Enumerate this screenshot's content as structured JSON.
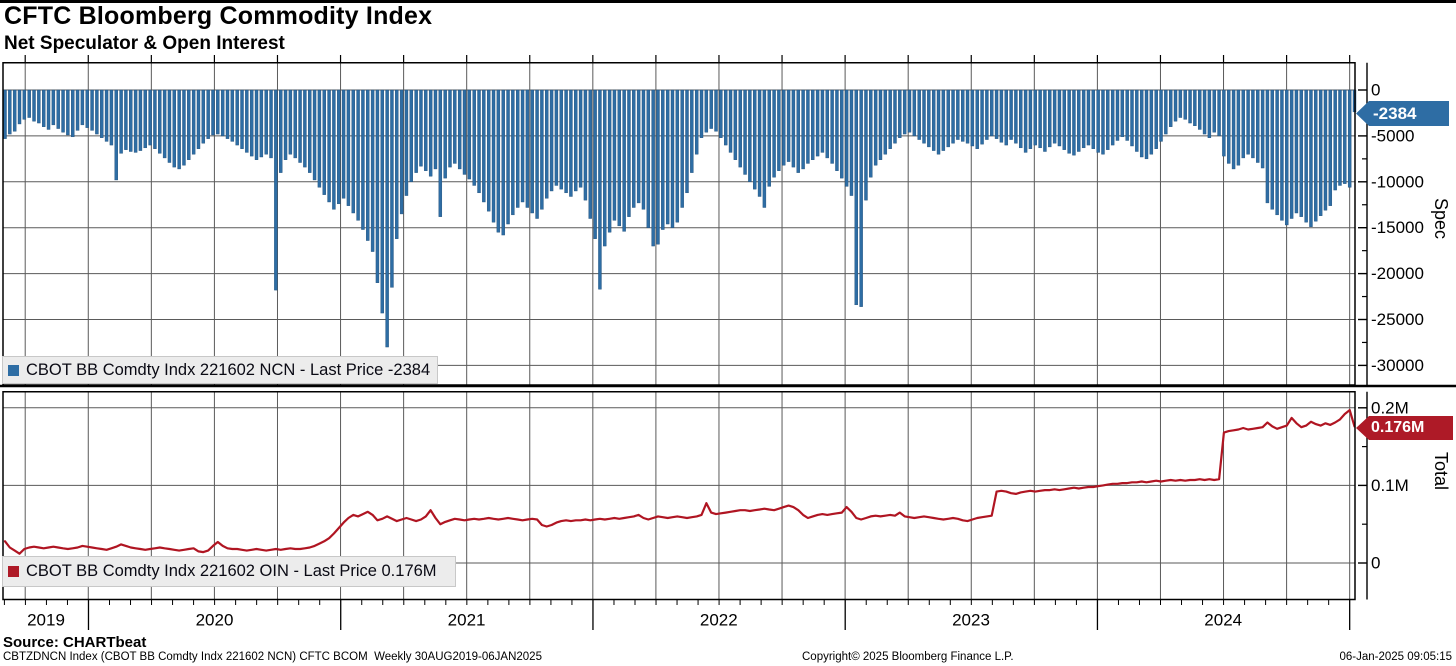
{
  "header": {
    "title": "CFTC Bloomberg Commodity Index",
    "subtitle": "Net Speculator & Open Interest"
  },
  "colors": {
    "bar_blue": "#2e6da4",
    "bar_edge": "#1d4d78",
    "line_red": "#b01522",
    "badge_blue": "#2e6da4",
    "badge_red": "#ae1a27",
    "grid": "#5a5a5a",
    "frame": "#000000",
    "legend_bg": "#ececec"
  },
  "spec_panel": {
    "axis_label": "Spec",
    "badge": "-2384",
    "legend": "CBOT BB Comdty Indx 221602 NCN - Last Price -2384",
    "ticks": [
      "0",
      "-5000",
      "-10000",
      "-15000",
      "-20000",
      "-25000",
      "-30000"
    ]
  },
  "total_panel": {
    "axis_label": "Total",
    "badge": "0.176M",
    "legend": "CBOT BB Comdty Indx 221602 OIN - Last Price 0.176M",
    "ticks": [
      "0.2M",
      "0.1M",
      "0"
    ]
  },
  "x_axis": {
    "years": [
      "2019",
      "2020",
      "2021",
      "2022",
      "2023",
      "2024"
    ]
  },
  "footer": {
    "source": "Source: CHARTbeat",
    "note_left": "CBTZDNCN Index (CBOT BB Comdty Indx 221602 NCN) CFTC BCOM  Weekly 30AUG2019-06JAN2025",
    "note_center": "Copyright© 2025 Bloomberg Finance L.P.",
    "note_right": "06-Jan-2025 09:05:15"
  },
  "chart_data": [
    {
      "type": "bar",
      "name": "CBOT BB Comdty Indx 221602 NCN",
      "title": "Net Speculator",
      "ylabel": "Spec",
      "frequency": "Weekly",
      "x_range": "30AUG2019-06JAN2025",
      "ylim": [
        -30000,
        0
      ],
      "last_price": -2384,
      "values": [
        -5300,
        -4800,
        -4500,
        -3700,
        -3200,
        -3000,
        -3400,
        -3600,
        -4000,
        -4300,
        -3800,
        -4200,
        -4600,
        -4900,
        -5100,
        -4400,
        -3800,
        -4100,
        -4400,
        -4800,
        -5200,
        -5600,
        -6000,
        -9800,
        -6900,
        -6500,
        -6700,
        -6800,
        -6600,
        -6300,
        -6000,
        -6400,
        -6900,
        -7400,
        -7900,
        -8400,
        -8600,
        -8200,
        -7600,
        -7000,
        -6400,
        -5800,
        -5300,
        -4900,
        -4800,
        -5000,
        -5300,
        -5600,
        -6000,
        -6400,
        -6800,
        -7200,
        -7600,
        -7300,
        -7000,
        -7400,
        -21800,
        -9000,
        -7600,
        -7000,
        -7400,
        -7900,
        -8400,
        -9000,
        -9800,
        -10600,
        -11400,
        -12200,
        -13000,
        -12400,
        -11800,
        -12600,
        -13400,
        -14200,
        -15200,
        -16400,
        -17600,
        -21000,
        -24300,
        -28000,
        -21500,
        -16200,
        -13500,
        -11500,
        -10000,
        -9000,
        -8300,
        -8800,
        -9400,
        -8600,
        -13800,
        -9600,
        -8400,
        -8000,
        -8600,
        -9200,
        -9700,
        -10400,
        -11200,
        -12200,
        -13200,
        -14400,
        -15500,
        -15800,
        -14600,
        -13600,
        -12800,
        -12200,
        -12800,
        -13400,
        -14000,
        -13000,
        -11800,
        -11000,
        -10400,
        -10800,
        -11200,
        -11600,
        -11000,
        -10600,
        -12000,
        -14000,
        -16200,
        -21700,
        -17000,
        -15500,
        -14200,
        -14800,
        -15400,
        -13800,
        -12800,
        -12300,
        -13000,
        -15000,
        -17000,
        -16800,
        -15200,
        -14600,
        -15000,
        -14400,
        -12800,
        -11200,
        -9000,
        -7000,
        -5200,
        -4600,
        -4200,
        -4500,
        -5200,
        -6000,
        -6800,
        -7600,
        -8400,
        -9200,
        -10000,
        -10800,
        -11600,
        -12800,
        -10500,
        -9500,
        -8800,
        -8200,
        -7800,
        -8400,
        -9000,
        -8600,
        -8000,
        -7600,
        -7200,
        -6800,
        -7400,
        -8000,
        -8800,
        -9600,
        -10500,
        -11500,
        -23400,
        -23600,
        -12000,
        -9500,
        -8200,
        -7600,
        -7000,
        -6400,
        -5800,
        -5200,
        -4800,
        -4600,
        -5000,
        -5400,
        -5800,
        -6200,
        -6600,
        -7000,
        -6600,
        -6200,
        -5800,
        -5400,
        -5600,
        -5800,
        -6100,
        -6400,
        -5900,
        -5400,
        -5000,
        -5300,
        -5700,
        -6000,
        -5400,
        -5800,
        -6300,
        -6800,
        -6400,
        -6000,
        -6300,
        -6700,
        -6200,
        -5800,
        -6100,
        -6500,
        -6900,
        -7100,
        -6700,
        -6300,
        -6000,
        -6400,
        -6800,
        -7000,
        -6500,
        -6000,
        -5500,
        -5100,
        -5500,
        -6100,
        -6700,
        -7300,
        -7500,
        -7000,
        -6400,
        -5600,
        -4800,
        -4000,
        -3400,
        -3000,
        -3200,
        -3600,
        -3900,
        -4300,
        -4800,
        -5200,
        -4600,
        -5000,
        -7200,
        -8000,
        -8600,
        -8200,
        -7400,
        -7000,
        -7400,
        -7900,
        -8500,
        -12300,
        -13000,
        -13600,
        -14200,
        -14700,
        -14000,
        -13400,
        -13800,
        -14400,
        -14900,
        -14300,
        -13700,
        -13100,
        -12600,
        -10900,
        -10400,
        -10200,
        -10600,
        -2384
      ]
    },
    {
      "type": "line",
      "name": "CBOT BB Comdty Indx 221602 OIN",
      "title": "Open Interest",
      "ylabel": "Total",
      "unit": "M",
      "frequency": "Weekly",
      "x_range": "30AUG2019-06JAN2025",
      "ylim": [
        0,
        0.2
      ],
      "last_price": "0.176M",
      "values": [
        0.028,
        0.02,
        0.016,
        0.012,
        0.018,
        0.02,
        0.021,
        0.02,
        0.019,
        0.02,
        0.021,
        0.02,
        0.019,
        0.018,
        0.019,
        0.02,
        0.022,
        0.021,
        0.02,
        0.019,
        0.018,
        0.017,
        0.019,
        0.021,
        0.024,
        0.022,
        0.02,
        0.019,
        0.018,
        0.017,
        0.018,
        0.019,
        0.02,
        0.019,
        0.018,
        0.017,
        0.016,
        0.017,
        0.018,
        0.019,
        0.015,
        0.014,
        0.016,
        0.022,
        0.027,
        0.022,
        0.019,
        0.018,
        0.018,
        0.017,
        0.016,
        0.017,
        0.018,
        0.017,
        0.016,
        0.017,
        0.018,
        0.017,
        0.018,
        0.019,
        0.018,
        0.018,
        0.019,
        0.02,
        0.022,
        0.025,
        0.028,
        0.032,
        0.038,
        0.045,
        0.052,
        0.058,
        0.062,
        0.06,
        0.063,
        0.066,
        0.062,
        0.055,
        0.057,
        0.06,
        0.057,
        0.054,
        0.056,
        0.058,
        0.056,
        0.054,
        0.056,
        0.06,
        0.068,
        0.058,
        0.05,
        0.053,
        0.055,
        0.057,
        0.056,
        0.055,
        0.056,
        0.057,
        0.056,
        0.057,
        0.058,
        0.057,
        0.056,
        0.057,
        0.058,
        0.057,
        0.056,
        0.055,
        0.056,
        0.057,
        0.056,
        0.049,
        0.047,
        0.049,
        0.052,
        0.054,
        0.055,
        0.054,
        0.055,
        0.055,
        0.056,
        0.055,
        0.056,
        0.057,
        0.056,
        0.057,
        0.058,
        0.057,
        0.058,
        0.059,
        0.06,
        0.062,
        0.058,
        0.056,
        0.058,
        0.06,
        0.059,
        0.058,
        0.059,
        0.06,
        0.059,
        0.058,
        0.059,
        0.06,
        0.062,
        0.077,
        0.065,
        0.063,
        0.064,
        0.065,
        0.066,
        0.067,
        0.068,
        0.068,
        0.067,
        0.068,
        0.069,
        0.07,
        0.069,
        0.068,
        0.07,
        0.072,
        0.074,
        0.072,
        0.068,
        0.062,
        0.058,
        0.06,
        0.062,
        0.063,
        0.062,
        0.063,
        0.064,
        0.065,
        0.072,
        0.066,
        0.058,
        0.056,
        0.058,
        0.06,
        0.061,
        0.06,
        0.061,
        0.062,
        0.061,
        0.065,
        0.06,
        0.059,
        0.058,
        0.059,
        0.06,
        0.059,
        0.058,
        0.057,
        0.056,
        0.057,
        0.058,
        0.057,
        0.055,
        0.054,
        0.056,
        0.058,
        0.059,
        0.06,
        0.061,
        0.092,
        0.093,
        0.092,
        0.09,
        0.089,
        0.091,
        0.092,
        0.093,
        0.092,
        0.093,
        0.094,
        0.094,
        0.095,
        0.094,
        0.095,
        0.096,
        0.097,
        0.096,
        0.097,
        0.098,
        0.098,
        0.099,
        0.1,
        0.101,
        0.102,
        0.102,
        0.103,
        0.103,
        0.104,
        0.104,
        0.105,
        0.104,
        0.105,
        0.106,
        0.105,
        0.106,
        0.107,
        0.106,
        0.107,
        0.106,
        0.107,
        0.107,
        0.108,
        0.107,
        0.108,
        0.107,
        0.108,
        0.168,
        0.17,
        0.171,
        0.172,
        0.174,
        0.172,
        0.173,
        0.174,
        0.175,
        0.181,
        0.176,
        0.173,
        0.175,
        0.177,
        0.187,
        0.18,
        0.175,
        0.177,
        0.182,
        0.179,
        0.177,
        0.18,
        0.178,
        0.181,
        0.185,
        0.192,
        0.197,
        0.176
      ]
    }
  ]
}
